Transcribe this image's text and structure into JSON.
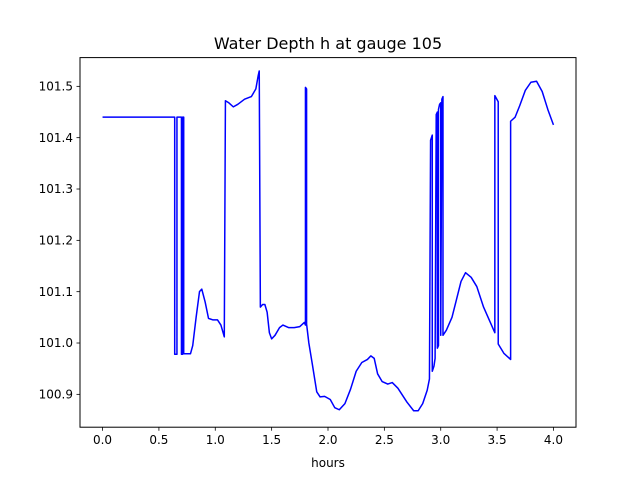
{
  "chart_data": {
    "type": "line",
    "title": "Water Depth h at gauge 105",
    "xlabel": "hours",
    "ylabel": "",
    "xlim": [
      -0.2,
      4.2
    ],
    "ylim": [
      100.836,
      101.556
    ],
    "xticks": [
      0.0,
      0.5,
      1.0,
      1.5,
      2.0,
      2.5,
      3.0,
      3.5,
      4.0
    ],
    "xtick_labels": [
      "0.0",
      "0.5",
      "1.0",
      "1.5",
      "2.0",
      "2.5",
      "3.0",
      "3.5",
      "4.0"
    ],
    "yticks": [
      100.9,
      101.0,
      101.1,
      101.2,
      101.3,
      101.4,
      101.5
    ],
    "ytick_labels": [
      "100.9",
      "101.0",
      "101.1",
      "101.2",
      "101.3",
      "101.4",
      "101.5"
    ],
    "grid": false,
    "color": "#0000ff",
    "series": [
      {
        "points": [
          [
            0.0,
            101.44
          ],
          [
            0.2,
            101.44
          ],
          [
            0.4,
            101.44
          ],
          [
            0.64,
            101.44
          ],
          [
            0.64,
            100.978
          ],
          [
            0.66,
            100.978
          ],
          [
            0.66,
            101.44
          ],
          [
            0.7,
            101.44
          ],
          [
            0.7,
            100.978
          ],
          [
            0.71,
            100.978
          ],
          [
            0.71,
            101.44
          ],
          [
            0.72,
            101.44
          ],
          [
            0.72,
            100.979
          ],
          [
            0.78,
            100.979
          ],
          [
            0.8,
            100.995
          ],
          [
            0.83,
            101.05
          ],
          [
            0.86,
            101.1
          ],
          [
            0.88,
            101.105
          ],
          [
            0.91,
            101.08
          ],
          [
            0.94,
            101.048
          ],
          [
            0.98,
            101.045
          ],
          [
            1.02,
            101.045
          ],
          [
            1.05,
            101.035
          ],
          [
            1.08,
            101.012
          ],
          [
            1.09,
            101.472
          ],
          [
            1.12,
            101.468
          ],
          [
            1.16,
            101.46
          ],
          [
            1.2,
            101.465
          ],
          [
            1.26,
            101.475
          ],
          [
            1.32,
            101.48
          ],
          [
            1.36,
            101.495
          ],
          [
            1.38,
            101.52
          ],
          [
            1.39,
            101.53
          ],
          [
            1.4,
            101.07
          ],
          [
            1.42,
            101.075
          ],
          [
            1.44,
            101.075
          ],
          [
            1.46,
            101.06
          ],
          [
            1.48,
            101.02
          ],
          [
            1.5,
            101.008
          ],
          [
            1.53,
            101.015
          ],
          [
            1.57,
            101.03
          ],
          [
            1.6,
            101.035
          ],
          [
            1.65,
            101.03
          ],
          [
            1.7,
            101.03
          ],
          [
            1.75,
            101.032
          ],
          [
            1.79,
            101.04
          ],
          [
            1.8,
            101.035
          ],
          [
            1.8,
            101.498
          ],
          [
            1.81,
            101.495
          ],
          [
            1.81,
            101.037
          ],
          [
            1.83,
            101.0
          ],
          [
            1.86,
            100.96
          ],
          [
            1.9,
            100.905
          ],
          [
            1.93,
            100.895
          ],
          [
            1.97,
            100.896
          ],
          [
            2.02,
            100.89
          ],
          [
            2.06,
            100.874
          ],
          [
            2.1,
            100.87
          ],
          [
            2.15,
            100.882
          ],
          [
            2.2,
            100.91
          ],
          [
            2.25,
            100.945
          ],
          [
            2.3,
            100.962
          ],
          [
            2.35,
            100.968
          ],
          [
            2.38,
            100.975
          ],
          [
            2.41,
            100.97
          ],
          [
            2.44,
            100.94
          ],
          [
            2.48,
            100.925
          ],
          [
            2.53,
            100.92
          ],
          [
            2.57,
            100.923
          ],
          [
            2.62,
            100.912
          ],
          [
            2.7,
            100.885
          ],
          [
            2.76,
            100.868
          ],
          [
            2.8,
            100.868
          ],
          [
            2.84,
            100.882
          ],
          [
            2.88,
            100.908
          ],
          [
            2.9,
            100.93
          ],
          [
            2.91,
            101.395
          ],
          [
            2.925,
            101.405
          ],
          [
            2.925,
            100.945
          ],
          [
            2.94,
            100.955
          ],
          [
            2.95,
            100.97
          ],
          [
            2.96,
            101.445
          ],
          [
            2.97,
            101.45
          ],
          [
            2.97,
            100.99
          ],
          [
            2.98,
            100.995
          ],
          [
            2.98,
            101.455
          ],
          [
            2.99,
            101.465
          ],
          [
            3.0,
            101.468
          ],
          [
            3.0,
            101.015
          ],
          [
            3.01,
            101.475
          ],
          [
            3.02,
            101.48
          ],
          [
            3.02,
            101.015
          ],
          [
            3.05,
            101.025
          ],
          [
            3.1,
            101.05
          ],
          [
            3.14,
            101.085
          ],
          [
            3.18,
            101.12
          ],
          [
            3.22,
            101.137
          ],
          [
            3.27,
            101.128
          ],
          [
            3.32,
            101.11
          ],
          [
            3.38,
            101.07
          ],
          [
            3.44,
            101.04
          ],
          [
            3.48,
            101.02
          ],
          [
            3.48,
            101.482
          ],
          [
            3.51,
            101.47
          ],
          [
            3.51,
            100.998
          ],
          [
            3.56,
            100.98
          ],
          [
            3.62,
            100.968
          ],
          [
            3.62,
            101.432
          ],
          [
            3.66,
            101.44
          ],
          [
            3.7,
            101.462
          ],
          [
            3.75,
            101.492
          ],
          [
            3.8,
            101.508
          ],
          [
            3.85,
            101.51
          ],
          [
            3.9,
            101.49
          ],
          [
            3.95,
            101.455
          ],
          [
            4.0,
            101.425
          ]
        ]
      }
    ]
  }
}
